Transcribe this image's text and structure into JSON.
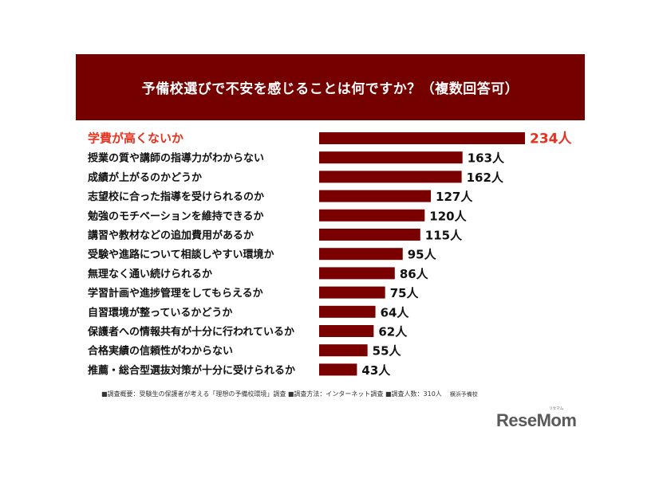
{
  "chart_data": {
    "type": "bar",
    "orientation": "horizontal",
    "title": "予備校選びで不安を感じることは何ですか？（複数回答可）",
    "categories": [
      "学費が高くないか",
      "授業の質や講師の指導力がわからない",
      "成績が上がるのかどうか",
      "志望校に合った指導を受けられるのか",
      "勉強のモチベーションを維持できるか",
      "講習や教材などの追加費用があるか",
      "受験や進路について相談しやすい環境か",
      "無理なく通い続けられるか",
      "学習計画や進捗管理をしてもらえるか",
      "自習環境が整っているかどうか",
      "保護者への情報共有が十分に行われているか",
      "合格実績の信頼性がわからない",
      "推薦・総合型選抜対策が十分に受けられるか"
    ],
    "values": [
      234,
      163,
      162,
      127,
      120,
      115,
      95,
      86,
      75,
      64,
      62,
      55,
      43
    ],
    "value_labels": [
      "234人",
      "163人",
      "162人",
      "127人",
      "120人",
      "115人",
      "95人",
      "86人",
      "75人",
      "64人",
      "62人",
      "55人",
      "43人"
    ],
    "highlight_index": 0,
    "xlim": [
      0,
      234
    ],
    "grid": false,
    "legend": "none",
    "colors": {
      "bar": "#7a0000",
      "highlight_text": "#e8321f",
      "label_text": "#111111",
      "banner": "#750000"
    }
  },
  "footnote": {
    "text": "■調査概要：受験生の保護者が考える「理想の予備校環境」調査 ■調査方法：インターネット調査 ■調査人数：310人",
    "source": "横浜予備校"
  },
  "logo": {
    "text": "ReseMom",
    "kana": "リセマム"
  }
}
